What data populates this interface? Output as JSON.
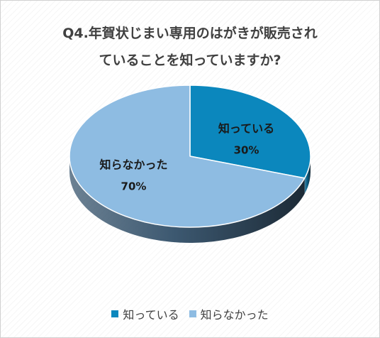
{
  "chart_data": {
    "type": "pie",
    "title_lines": [
      "Q4.年賀状じまい専用のはがきが販売され",
      "ていることを知っていますか?"
    ],
    "slices": [
      {
        "label": "知っている",
        "value": 30,
        "value_label": "30%",
        "color": "#0b87bd",
        "side_color": "#075d84"
      },
      {
        "label": "知らなかった",
        "value": 70,
        "value_label": "70%",
        "color": "#8ebce2",
        "side_color": "#3c5870"
      }
    ],
    "legend": [
      "知っている",
      "知らなかった"
    ],
    "legend_position": "bottom",
    "style": "3d-tilted"
  }
}
